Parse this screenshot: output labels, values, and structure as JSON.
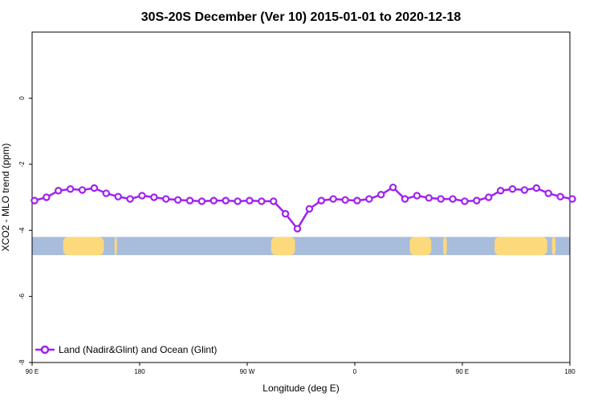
{
  "chart_data": {
    "type": "line",
    "title": "30S-20S December (Ver 10)   2015-01-01 to 2020-12-18",
    "xlabel": "Longitude (deg E)",
    "ylabel": "XCO2 - MLO trend (ppm)",
    "xlim": [
      90,
      540
    ],
    "ylim": [
      -8,
      2
    ],
    "x_ticks": [
      {
        "value": 90,
        "label": "90 E"
      },
      {
        "value": 180,
        "label": "180"
      },
      {
        "value": 270,
        "label": "90 W"
      },
      {
        "value": 360,
        "label": "0"
      },
      {
        "value": 450,
        "label": "90 E"
      },
      {
        "value": 540,
        "label": "180"
      }
    ],
    "y_ticks": [
      {
        "value": 0,
        "label": "0"
      },
      {
        "value": -2,
        "label": "-2"
      },
      {
        "value": -4,
        "label": "-4"
      },
      {
        "value": -6,
        "label": "-6"
      },
      {
        "value": -8,
        "label": "-8"
      }
    ],
    "grid": false,
    "legend_position": "bottom-left",
    "series": [
      {
        "name": "Land (Nadir&Glint) and Ocean (Glint)",
        "color": "#a020f0",
        "points": [
          [
            92,
            -3.1
          ],
          [
            102,
            -3.0
          ],
          [
            112,
            -2.8
          ],
          [
            122,
            -2.75
          ],
          [
            132,
            -2.78
          ],
          [
            142,
            -2.72
          ],
          [
            152,
            -2.88
          ],
          [
            162,
            -2.98
          ],
          [
            172,
            -3.05
          ],
          [
            182,
            -2.95
          ],
          [
            192,
            -3.0
          ],
          [
            202,
            -3.05
          ],
          [
            212,
            -3.08
          ],
          [
            222,
            -3.1
          ],
          [
            232,
            -3.12
          ],
          [
            242,
            -3.1
          ],
          [
            252,
            -3.1
          ],
          [
            262,
            -3.12
          ],
          [
            272,
            -3.1
          ],
          [
            282,
            -3.12
          ],
          [
            292,
            -3.12
          ],
          [
            302,
            -3.5
          ],
          [
            312,
            -3.95
          ],
          [
            322,
            -3.35
          ],
          [
            332,
            -3.1
          ],
          [
            342,
            -3.05
          ],
          [
            352,
            -3.08
          ],
          [
            362,
            -3.1
          ],
          [
            372,
            -3.05
          ],
          [
            382,
            -2.92
          ],
          [
            392,
            -2.7
          ],
          [
            402,
            -3.05
          ],
          [
            412,
            -2.95
          ],
          [
            422,
            -3.02
          ],
          [
            432,
            -3.05
          ],
          [
            442,
            -3.05
          ],
          [
            452,
            -3.12
          ],
          [
            462,
            -3.1
          ],
          [
            472,
            -3.0
          ],
          [
            482,
            -2.8
          ],
          [
            492,
            -2.75
          ],
          [
            502,
            -2.78
          ],
          [
            512,
            -2.72
          ],
          [
            522,
            -2.88
          ],
          [
            532,
            -2.98
          ],
          [
            542,
            -3.05
          ]
        ]
      }
    ],
    "map_band": {
      "ylim": [
        -4.75,
        -4.2
      ],
      "ocean_color": "#a8bcdc",
      "land_color": "#fcd97a",
      "land_segments": [
        [
          116,
          150
        ],
        [
          159,
          161
        ],
        [
          290,
          310
        ],
        [
          406,
          424
        ],
        [
          434,
          437
        ],
        [
          477,
          521
        ],
        [
          525,
          528
        ]
      ]
    }
  }
}
